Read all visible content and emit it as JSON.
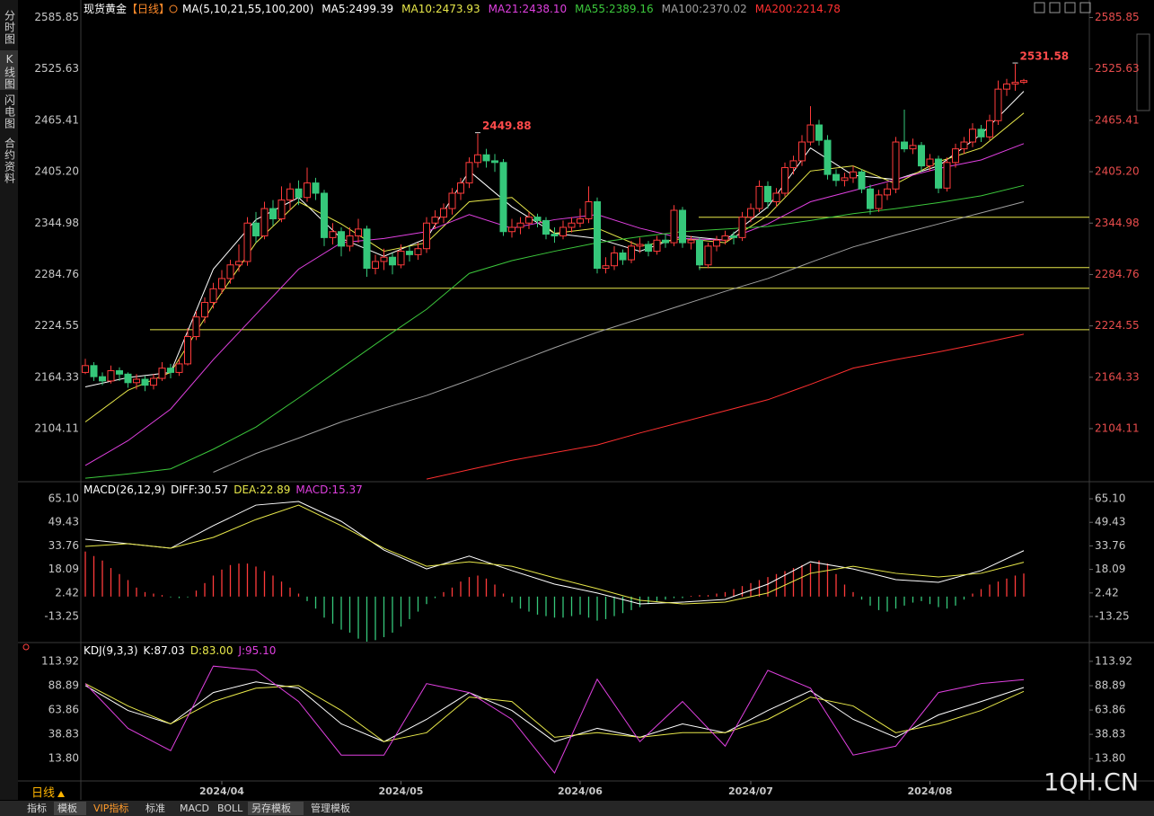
{
  "sidebar": [
    "分时图",
    "K线图",
    "闪电图",
    "合约资料"
  ],
  "period": "日线",
  "tabs": [
    "指标",
    "模板",
    "VIP指标",
    "标准",
    "MACD",
    "BOLL",
    "另存模板",
    "管理模板"
  ],
  "watermark": "1QH.CN",
  "chart_data": [
    {
      "type": "candlestick",
      "title": "现货黄金",
      "period_tag": "【日线】",
      "indicator": "MA(5,10,21,55,100,200)",
      "up_color": "#ff3b3b",
      "down_color": "#35c77a",
      "grid": false,
      "ylim": [
        2043,
        2598
      ],
      "yticks": [
        2585.85,
        2525.63,
        2465.41,
        {
          "value": 2405.2,
          "label": "2405.20"
        },
        2344.98,
        2284.76,
        2224.55,
        2164.33,
        2104.11
      ],
      "candles": [
        [
          2170,
          2186,
          2168,
          2178
        ],
        [
          2178,
          2182,
          2160,
          2165
        ],
        [
          2165,
          2170,
          2155,
          2160
        ],
        [
          2160,
          2178,
          2157,
          2172
        ],
        [
          2172,
          2176,
          2160,
          2168
        ],
        [
          2168,
          2170,
          2152,
          2158
        ],
        [
          2158,
          2168,
          2150,
          2162
        ],
        [
          2162,
          2166,
          2148,
          2155
        ],
        [
          2155,
          2168,
          2150,
          2163
        ],
        [
          2163,
          2182,
          2160,
          2175
        ],
        [
          2175,
          2180,
          2163,
          2170
        ],
        [
          2170,
          2186,
          2166,
          2180
        ],
        [
          2180,
          2222,
          2178,
          2212
        ],
        [
          2212,
          2242,
          2208,
          2235
        ],
        [
          2235,
          2258,
          2228,
          2252
        ],
        [
          2252,
          2275,
          2245,
          2268
        ],
        [
          2268,
          2290,
          2262,
          2280
        ],
        [
          2280,
          2302,
          2274,
          2296
        ],
        [
          2296,
          2320,
          2288,
          2300
        ],
        [
          2300,
          2352,
          2295,
          2345
        ],
        [
          2345,
          2358,
          2322,
          2330
        ],
        [
          2330,
          2370,
          2326,
          2362
        ],
        [
          2362,
          2372,
          2342,
          2350
        ],
        [
          2350,
          2388,
          2346,
          2372
        ],
        [
          2372,
          2392,
          2360,
          2385
        ],
        [
          2385,
          2395,
          2366,
          2375
        ],
        [
          2375,
          2410,
          2370,
          2392
        ],
        [
          2392,
          2398,
          2372,
          2380
        ],
        [
          2380,
          2384,
          2318,
          2328
        ],
        [
          2328,
          2345,
          2320,
          2335
        ],
        [
          2335,
          2340,
          2306,
          2318
        ],
        [
          2318,
          2340,
          2312,
          2330
        ],
        [
          2330,
          2350,
          2322,
          2338
        ],
        [
          2338,
          2342,
          2282,
          2292
        ],
        [
          2292,
          2308,
          2285,
          2300
        ],
        [
          2300,
          2315,
          2290,
          2305
        ],
        [
          2305,
          2310,
          2285,
          2296
        ],
        [
          2296,
          2320,
          2292,
          2312
        ],
        [
          2312,
          2318,
          2300,
          2308
        ],
        [
          2308,
          2322,
          2302,
          2315
        ],
        [
          2315,
          2352,
          2310,
          2345
        ],
        [
          2345,
          2360,
          2338,
          2352
        ],
        [
          2352,
          2368,
          2345,
          2362
        ],
        [
          2362,
          2386,
          2355,
          2380
        ],
        [
          2380,
          2398,
          2372,
          2392
        ],
        [
          2392,
          2422,
          2386,
          2416
        ],
        [
          2416,
          2449.88,
          2410,
          2425
        ],
        [
          2425,
          2432,
          2410,
          2418
        ],
        [
          2418,
          2426,
          2405,
          2416
        ],
        [
          2416,
          2420,
          2330,
          2335
        ],
        [
          2335,
          2350,
          2328,
          2340
        ],
        [
          2340,
          2352,
          2332,
          2345
        ],
        [
          2345,
          2358,
          2338,
          2352
        ],
        [
          2352,
          2356,
          2340,
          2348
        ],
        [
          2348,
          2352,
          2326,
          2332
        ],
        [
          2332,
          2340,
          2322,
          2330
        ],
        [
          2330,
          2348,
          2326,
          2340
        ],
        [
          2340,
          2352,
          2334,
          2345
        ],
        [
          2345,
          2362,
          2340,
          2350
        ],
        [
          2350,
          2388,
          2345,
          2370
        ],
        [
          2370,
          2375,
          2286,
          2292
        ],
        [
          2292,
          2305,
          2286,
          2295
        ],
        [
          2295,
          2318,
          2290,
          2310
        ],
        [
          2310,
          2314,
          2296,
          2302
        ],
        [
          2302,
          2324,
          2298,
          2318
        ],
        [
          2318,
          2328,
          2310,
          2320
        ],
        [
          2320,
          2324,
          2306,
          2312
        ],
        [
          2312,
          2330,
          2308,
          2325
        ],
        [
          2325,
          2332,
          2316,
          2322
        ],
        [
          2322,
          2366,
          2318,
          2360
        ],
        [
          2360,
          2364,
          2316,
          2322
        ],
        [
          2322,
          2330,
          2314,
          2325
        ],
        [
          2325,
          2328,
          2290,
          2296
        ],
        [
          2296,
          2322,
          2292,
          2318
        ],
        [
          2318,
          2330,
          2312,
          2325
        ],
        [
          2325,
          2336,
          2320,
          2330
        ],
        [
          2330,
          2335,
          2320,
          2328
        ],
        [
          2328,
          2358,
          2324,
          2352
        ],
        [
          2352,
          2368,
          2346,
          2362
        ],
        [
          2362,
          2395,
          2358,
          2388
        ],
        [
          2388,
          2394,
          2362,
          2370
        ],
        [
          2370,
          2386,
          2364,
          2380
        ],
        [
          2380,
          2416,
          2376,
          2410
        ],
        [
          2410,
          2424,
          2402,
          2418
        ],
        [
          2418,
          2448,
          2412,
          2440
        ],
        [
          2440,
          2482,
          2436,
          2460
        ],
        [
          2460,
          2466,
          2436,
          2442
        ],
        [
          2442,
          2448,
          2396,
          2402
        ],
        [
          2402,
          2408,
          2388,
          2395
        ],
        [
          2395,
          2404,
          2388,
          2398
        ],
        [
          2398,
          2412,
          2392,
          2405
        ],
        [
          2405,
          2408,
          2380,
          2385
        ],
        [
          2385,
          2390,
          2355,
          2362
        ],
        [
          2362,
          2384,
          2358,
          2378
        ],
        [
          2378,
          2392,
          2372,
          2385
        ],
        [
          2385,
          2446,
          2380,
          2440
        ],
        [
          2440,
          2478,
          2428,
          2432
        ],
        [
          2432,
          2444,
          2426,
          2436
        ],
        [
          2436,
          2440,
          2405,
          2412
        ],
        [
          2412,
          2426,
          2406,
          2420
        ],
        [
          2420,
          2424,
          2380,
          2386
        ],
        [
          2386,
          2422,
          2382,
          2416
        ],
        [
          2416,
          2438,
          2410,
          2432
        ],
        [
          2432,
          2446,
          2426,
          2440
        ],
        [
          2440,
          2462,
          2434,
          2455
        ],
        [
          2455,
          2460,
          2440,
          2446
        ],
        [
          2446,
          2472,
          2442,
          2465
        ],
        [
          2465,
          2512,
          2460,
          2502
        ],
        [
          2502,
          2514,
          2494,
          2508
        ],
        [
          2508,
          2531.58,
          2500,
          2510
        ],
        [
          2510,
          2514,
          2508,
          2512
        ]
      ],
      "hlines": {
        "color": "#e8e84a",
        "values": [
          2351.8,
          2292.8,
          2268.6,
          2220.1
        ]
      },
      "x": [
        0,
        5,
        10,
        15,
        20,
        25,
        30,
        35,
        40,
        45,
        50,
        55,
        60,
        65,
        70,
        75,
        80,
        85,
        90,
        95,
        100,
        105,
        110
      ],
      "series": [
        {
          "name": "MA5:2499.39",
          "color": "#ffffff",
          "values": [
            2153,
            2164,
            2170,
            2291,
            2349,
            2375,
            2327,
            2306,
            2327,
            2406,
            2364,
            2333,
            2327,
            2312,
            2330,
            2325,
            2364,
            2433,
            2401,
            2396,
            2412,
            2449,
            2499.39
          ]
        },
        {
          "name": "MA10:2473.93",
          "color": "#e8e84a",
          "values": [
            2112,
            2149,
            2170,
            2249,
            2322,
            2370,
            2344,
            2312,
            2322,
            2370,
            2375,
            2333,
            2339,
            2318,
            2327,
            2322,
            2354,
            2406,
            2412,
            2391,
            2417,
            2433,
            2473.93
          ]
        },
        {
          "name": "MA21:2438.10",
          "color": "#e040e0",
          "values": [
            2061,
            2090,
            2127,
            2185,
            2238,
            2291,
            2322,
            2327,
            2335,
            2355,
            2339,
            2349,
            2355,
            2339,
            2327,
            2325,
            2344,
            2370,
            2383,
            2396,
            2409,
            2419,
            2438.1
          ]
        },
        {
          "name": "MA55:2389.16",
          "color": "#3cc83c",
          "values": [
            2046,
            2051,
            2057,
            2080,
            2106,
            2140,
            2175,
            2210,
            2244,
            2286,
            2301,
            2312,
            2322,
            2329,
            2335,
            2338,
            2341,
            2348,
            2356,
            2362,
            2369,
            2377,
            2389.16
          ]
        },
        {
          "name": "MA100:2370.02",
          "color": "#a0a0a0",
          "values": [
            null,
            null,
            null,
            2053,
            2075,
            2093,
            2112,
            2128,
            2143,
            2161,
            2180,
            2199,
            2217,
            2233,
            2249,
            2265,
            2280,
            2299,
            2317,
            2331,
            2344,
            2357,
            2370.02
          ]
        },
        {
          "name": "MA200:2214.78",
          "color": "#ff3030",
          "values": [
            null,
            null,
            null,
            null,
            null,
            null,
            null,
            null,
            2045,
            2056,
            2067,
            2076,
            2085,
            2099,
            2112,
            2125,
            2138,
            2156,
            2175,
            2185,
            2194,
            2204,
            2214.78
          ]
        }
      ]
    },
    {
      "type": "macd",
      "title": "MACD(26,12,9)",
      "grid": false,
      "ylim": [
        -30,
        72.3
      ],
      "yticks": [
        {
          "value": 65.1,
          "label": "65.10"
        },
        49.43,
        33.76,
        18.09,
        2.42,
        -13.25
      ],
      "x": [
        0,
        5,
        10,
        15,
        20,
        25,
        30,
        35,
        40,
        45,
        50,
        55,
        60,
        65,
        70,
        75,
        80,
        85,
        90,
        95,
        100,
        105,
        110
      ],
      "series": [
        {
          "name": "DIFF:30.57",
          "color": "#ffffff",
          "values": [
            38.2,
            35.2,
            32.2,
            47.2,
            60.9,
            63.3,
            50.1,
            31,
            18.4,
            27,
            17.3,
            8.3,
            2.4,
            -4.9,
            -3.7,
            -1.9,
            8.3,
            23.2,
            18.4,
            11.3,
            9.5,
            17.3,
            30.57
          ]
        },
        {
          "name": "DEA:22.89",
          "color": "#e8e84a",
          "values": [
            33.4,
            35.2,
            32.2,
            39.4,
            51.3,
            60.9,
            47.2,
            32.2,
            20.2,
            23.2,
            20.2,
            12.5,
            5.3,
            -2.5,
            -4.9,
            -3.7,
            2.4,
            15.5,
            20.2,
            15.5,
            13.1,
            15.5,
            22.89
          ]
        }
      ],
      "histogram": {
        "name": "MACD:15.37",
        "color": "#e040e0",
        "up_color": "#ff3b3b",
        "down_color": "#35c77a",
        "values": [
          30,
          27,
          24,
          19,
          15,
          11,
          6,
          3,
          2,
          1,
          -0.5,
          -1,
          -0.5,
          4,
          9,
          14,
          18,
          21,
          22,
          22,
          20,
          17,
          14,
          10,
          6,
          2,
          -3,
          -8,
          -14,
          -18,
          -22,
          -24,
          -28,
          -30,
          -29,
          -27,
          -24,
          -20,
          -15,
          -10,
          -5,
          -1,
          3,
          6,
          10,
          13,
          14,
          12,
          8,
          2,
          -4,
          -8,
          -10,
          -12,
          -13,
          -14,
          -14,
          -13,
          -12,
          -14,
          -16,
          -15,
          -13,
          -11,
          -9,
          -7,
          -5,
          -3,
          -2,
          -1,
          -1,
          0.5,
          1,
          1,
          2,
          3,
          5,
          7,
          9,
          11,
          13,
          15,
          17,
          19,
          21,
          22,
          24,
          22,
          15,
          8,
          3,
          -2,
          -6,
          -9,
          -10,
          -8,
          -6,
          -4,
          -3,
          -5,
          -7,
          -8,
          -6,
          -2,
          2,
          5,
          8,
          10,
          12,
          14,
          15.37
        ]
      }
    },
    {
      "type": "line",
      "title": "KDJ(9,3,3)",
      "grid": false,
      "ylim": [
        -8.2,
        132.3
      ],
      "yticks": [
        113.92,
        88.89,
        63.86,
        38.83,
        {
          "value": 13.8,
          "label": "13.80"
        }
      ],
      "xticks": [
        {
          "value": 16,
          "label": "2024/04"
        },
        {
          "value": 37,
          "label": "2024/05"
        },
        {
          "value": 58,
          "label": "2024/06"
        },
        {
          "value": 78,
          "label": "2024/07"
        },
        {
          "value": 99,
          "label": "2024/08"
        }
      ],
      "x": [
        0,
        5,
        10,
        15,
        20,
        25,
        30,
        35,
        40,
        45,
        50,
        55,
        60,
        65,
        70,
        75,
        80,
        85,
        90,
        95,
        100,
        105,
        110
      ],
      "series": [
        {
          "name": "K:87.03",
          "color": "#ffffff",
          "values": [
            89,
            63.4,
            49.6,
            81.8,
            92.8,
            86.3,
            49.6,
            31.3,
            54.2,
            81.8,
            63.4,
            31.3,
            45,
            35.8,
            49.6,
            40.5,
            63.4,
            83.6,
            54.2,
            35.8,
            58.8,
            72.6,
            87.03
          ]
        },
        {
          "name": "D:83.00",
          "color": "#e8e84a",
          "values": [
            91,
            68,
            49.6,
            72.6,
            86.3,
            89,
            63.4,
            31.3,
            40.5,
            77.2,
            72.6,
            35.8,
            40.5,
            35.8,
            40.5,
            40.5,
            54.2,
            77.2,
            68,
            40.5,
            49.6,
            63.4,
            83
          ]
        },
        {
          "name": "J:95.10",
          "color": "#e040e0",
          "values": [
            91,
            45,
            22,
            109,
            104.7,
            72.6,
            17.5,
            17.5,
            91,
            81.8,
            54.2,
            -0.9,
            95.5,
            31.3,
            72.6,
            26.7,
            104.7,
            86.3,
            17.5,
            26.7,
            81.8,
            91,
            95.1
          ]
        }
      ]
    }
  ]
}
